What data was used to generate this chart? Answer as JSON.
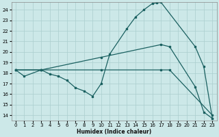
{
  "xlabel": "Humidex (Indice chaleur)",
  "xlim": [
    -0.5,
    23.5
  ],
  "ylim": [
    13.5,
    24.7
  ],
  "xticks": [
    0,
    1,
    2,
    3,
    4,
    5,
    6,
    7,
    8,
    9,
    10,
    11,
    12,
    13,
    14,
    15,
    16,
    17,
    18,
    19,
    20,
    21,
    22,
    23
  ],
  "yticks": [
    14,
    15,
    16,
    17,
    18,
    19,
    20,
    21,
    22,
    23,
    24
  ],
  "bg_color": "#cce8e8",
  "line_color": "#1a6060",
  "grid_color": "#aacece",
  "line1_x": [
    0,
    1,
    3,
    4,
    5,
    6,
    7,
    8,
    9,
    10,
    11,
    13,
    14,
    15,
    16,
    16.5,
    17,
    21,
    22,
    23
  ],
  "line1_y": [
    18.3,
    17.7,
    18.3,
    17.9,
    17.7,
    17.3,
    16.6,
    16.3,
    15.8,
    17.0,
    19.8,
    22.2,
    23.3,
    24.0,
    24.6,
    24.65,
    24.7,
    20.5,
    18.6,
    13.7
  ],
  "line2_x": [
    0,
    3,
    10,
    17,
    18,
    23
  ],
  "line2_y": [
    18.3,
    18.3,
    18.3,
    18.3,
    18.3,
    14.0
  ],
  "line3_x": [
    0,
    3,
    10,
    17,
    18,
    21,
    22,
    23
  ],
  "line3_y": [
    18.3,
    18.3,
    19.5,
    20.7,
    20.5,
    16.7,
    14.3,
    13.7
  ]
}
